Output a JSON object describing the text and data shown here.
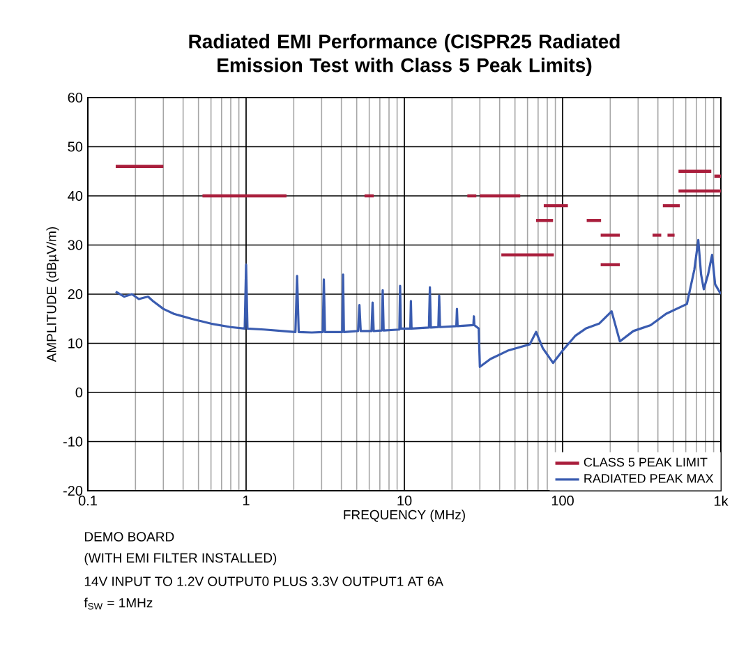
{
  "chart_data": {
    "type": "line",
    "title": "Radiated EMI Performance (CISPR25 Radiated Emission Test with Class 5 Peak Limits)",
    "xlabel": "FREQUENCY (MHz)",
    "ylabel": "AMPLITUDE (dBµV/m)",
    "log": "x",
    "xlim": [
      0.1,
      1000
    ],
    "ylim": [
      -20,
      60
    ],
    "xticks": [
      0.1,
      1,
      10,
      100,
      {
        "value": 1000,
        "label": "1k"
      }
    ],
    "yticks": [
      -20,
      -10,
      0,
      10,
      20,
      30,
      40,
      50,
      60
    ],
    "grid": true,
    "legend": "bottom right",
    "series": [
      {
        "name": "CLASS 5 PEAK LIMIT",
        "color": "#a91e3c",
        "x": [
          0.15,
          0.3
        ],
        "values": [
          46,
          46
        ]
      },
      {
        "color": "#a91e3c",
        "x": [
          0.53,
          1.8
        ],
        "values": [
          40,
          40
        ]
      },
      {
        "color": "#a91e3c",
        "x": [
          5.6,
          6.4
        ],
        "values": [
          40,
          40
        ]
      },
      {
        "color": "#a91e3c",
        "x": [
          25,
          28.5
        ],
        "values": [
          40,
          40
        ]
      },
      {
        "color": "#a91e3c",
        "x": [
          30,
          54
        ],
        "values": [
          40,
          40
        ]
      },
      {
        "color": "#a91e3c",
        "x": [
          41,
          88
        ],
        "values": [
          28,
          28
        ]
      },
      {
        "color": "#a91e3c",
        "x": [
          68,
          87
        ],
        "values": [
          35,
          35
        ]
      },
      {
        "color": "#a91e3c",
        "x": [
          76,
          108
        ],
        "values": [
          38,
          38
        ]
      },
      {
        "color": "#a91e3c",
        "x": [
          142,
          175
        ],
        "values": [
          35,
          35
        ]
      },
      {
        "color": "#a91e3c",
        "x": [
          174,
          230
        ],
        "values": [
          32,
          32
        ]
      },
      {
        "color": "#a91e3c",
        "x": [
          174,
          230
        ],
        "values": [
          26,
          26
        ]
      },
      {
        "color": "#a91e3c",
        "x": [
          370,
          420
        ],
        "values": [
          32,
          32
        ]
      },
      {
        "color": "#a91e3c",
        "x": [
          460,
          510
        ],
        "values": [
          32,
          32
        ]
      },
      {
        "color": "#a91e3c",
        "x": [
          430,
          550
        ],
        "values": [
          38,
          38
        ]
      },
      {
        "color": "#a91e3c",
        "x": [
          540,
          870
        ],
        "values": [
          45,
          45
        ]
      },
      {
        "color": "#a91e3c",
        "x": [
          540,
          1000
        ],
        "values": [
          41,
          41
        ]
      },
      {
        "color": "#a91e3c",
        "x": [
          910,
          1000
        ],
        "values": [
          44,
          44
        ]
      },
      {
        "name": "RADIATED PEAK MAX",
        "color": "#3a5cb0",
        "x": [
          0.15,
          0.17,
          0.19,
          0.21,
          0.24,
          0.26,
          0.3,
          0.35,
          0.45,
          0.6,
          0.8,
          0.98,
          1.0,
          1.02,
          1.3,
          1.7,
          2.05,
          2.1,
          2.15,
          2.6,
          3.05,
          3.1,
          3.15,
          4.05,
          4.1,
          4.15,
          5.1,
          5.2,
          5.3,
          6.2,
          6.3,
          6.4,
          7.2,
          7.3,
          7.4,
          9.3,
          9.4,
          9.5,
          10.9,
          11,
          11.1,
          14.3,
          14.5,
          14.7,
          16.4,
          16.6,
          16.8,
          21.3,
          21.5,
          21.7,
          27.3,
          27.5,
          27.7,
          29.5,
          30,
          35,
          45,
          62,
          68,
          75,
          87,
          100,
          120,
          140,
          170,
          204,
          230,
          280,
          360,
          450,
          610,
          680,
          720,
          750,
          780,
          830,
          880,
          920,
          1000
        ],
        "values": [
          20.5,
          19.5,
          20,
          19,
          19.5,
          18.5,
          17,
          16,
          15,
          14,
          13.3,
          13,
          26,
          13,
          12.8,
          12.5,
          12.3,
          23.7,
          12.3,
          12.2,
          12.3,
          23,
          12.3,
          12.3,
          24,
          12.3,
          12.5,
          17.8,
          12.5,
          12.5,
          18.3,
          12.5,
          12.6,
          20.8,
          12.6,
          12.8,
          21.7,
          13,
          13,
          18.6,
          13,
          13.2,
          21.4,
          13.2,
          13.3,
          19.7,
          13.3,
          13.5,
          17,
          13.5,
          13.7,
          15.5,
          13.7,
          13,
          5.2,
          6.8,
          8.5,
          9.8,
          12.3,
          9,
          6,
          8.5,
          11.5,
          13,
          14,
          16.5,
          10.4,
          12.5,
          13.7,
          16,
          18,
          25,
          31,
          24,
          21,
          24,
          28,
          22,
          20
        ]
      }
    ],
    "annotations": [
      "DEMO BOARD",
      "(WITH EMI FILTER INSTALLED)",
      "14V INPUT TO 1.2V OUTPUT0 PLUS 3.3V OUTPUT1 AT 6A",
      "f$_{SW}$ = 1MHz"
    ]
  }
}
